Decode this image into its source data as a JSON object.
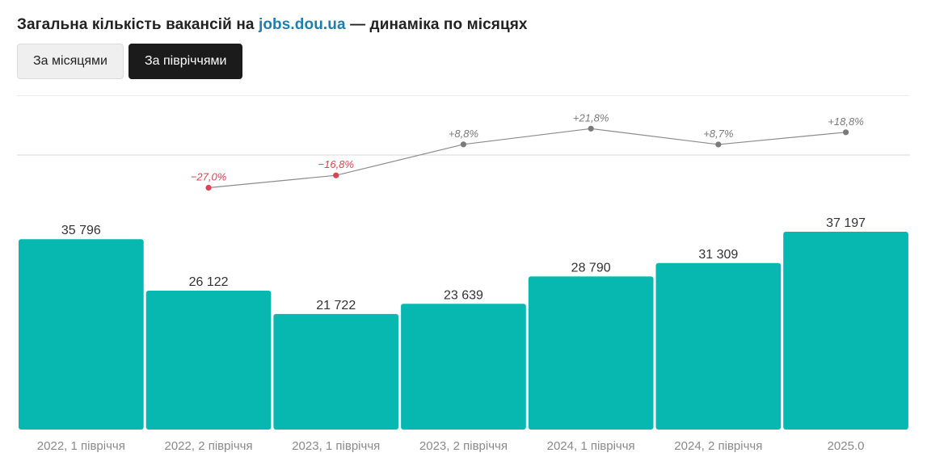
{
  "header": {
    "title_prefix": "Загальна кількість вакансій на ",
    "title_link": "jobs.dou.ua",
    "title_suffix": " — динаміка по місяцях"
  },
  "tabs": [
    {
      "label": "За місяцями",
      "active": false
    },
    {
      "label": "За півріччями",
      "active": true
    }
  ],
  "colors": {
    "bar": "#06b8b0",
    "negative": "#d94452",
    "positive": "#7a7a7a",
    "line": "#8c8c8c"
  },
  "chart_data": {
    "type": "bar",
    "categories": [
      "2022, 1 півріччя",
      "2022, 2 півріччя",
      "2023, 1 півріччя",
      "2023, 2 півріччя",
      "2024, 1 півріччя",
      "2024, 2 півріччя",
      "2025.0"
    ],
    "values": [
      35796,
      26122,
      21722,
      23639,
      28790,
      31309,
      37197
    ],
    "value_labels": [
      "35 796",
      "26 122",
      "21 722",
      "23 639",
      "28 790",
      "31 309",
      "37 197"
    ],
    "ylim": [
      0,
      40000
    ],
    "grid": false,
    "change_line": {
      "type": "line",
      "values": [
        null,
        -27.0,
        -16.8,
        8.8,
        21.8,
        8.7,
        18.8
      ],
      "labels": [
        "",
        "−27,0%",
        "−16,8%",
        "+8,8%",
        "+21,8%",
        "+8,7%",
        "+18,8%"
      ],
      "baseline": 0
    }
  }
}
